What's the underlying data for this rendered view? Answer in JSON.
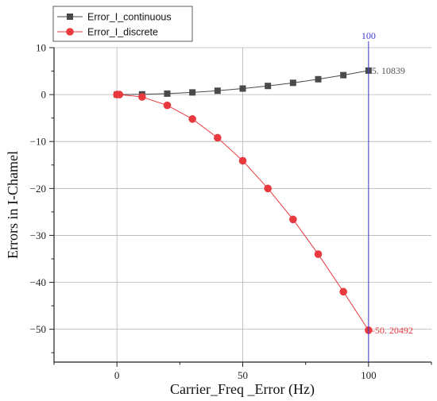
{
  "chart_data": {
    "type": "line",
    "title": "",
    "xlabel": "Carrier_Freq _Error (Hz)",
    "ylabel": "Errors in I-Chamel",
    "xlim": [
      -25,
      125
    ],
    "ylim": [
      -57,
      10
    ],
    "xticks": [
      0,
      50,
      100
    ],
    "yticks": [
      10,
      0,
      -10,
      -20,
      -30,
      -40,
      -50
    ],
    "grid": true,
    "legend_position": "top-left",
    "series": [
      {
        "name": "Error_I_continuous",
        "marker": "square",
        "color": "#4a4a4a",
        "x": [
          0,
          10,
          20,
          30,
          40,
          50,
          60,
          70,
          80,
          90,
          100
        ],
        "values": [
          0,
          0.05,
          0.2,
          0.46,
          0.82,
          1.28,
          1.84,
          2.5,
          3.27,
          4.14,
          5.10839
        ]
      },
      {
        "name": "Error_I_discrete",
        "marker": "circle",
        "color": "#e8393f",
        "x": [
          0,
          1,
          10,
          20,
          30,
          40,
          50,
          60,
          70,
          80,
          90,
          100
        ],
        "values": [
          0,
          0,
          -0.5,
          -2.3,
          -5.2,
          -9.2,
          -14.1,
          -20.0,
          -26.6,
          -34.0,
          -42.0,
          -50.20492
        ]
      }
    ],
    "annotations": [
      {
        "text": "5. 10839",
        "x": 100,
        "y": 5.10839,
        "color": "#555555"
      },
      {
        "text": "-50. 20492",
        "x": 100,
        "y": -50.20492,
        "color": "#e8393f"
      }
    ],
    "cursor": {
      "x": 100,
      "label": "100",
      "color": "#3b3bd1"
    }
  }
}
